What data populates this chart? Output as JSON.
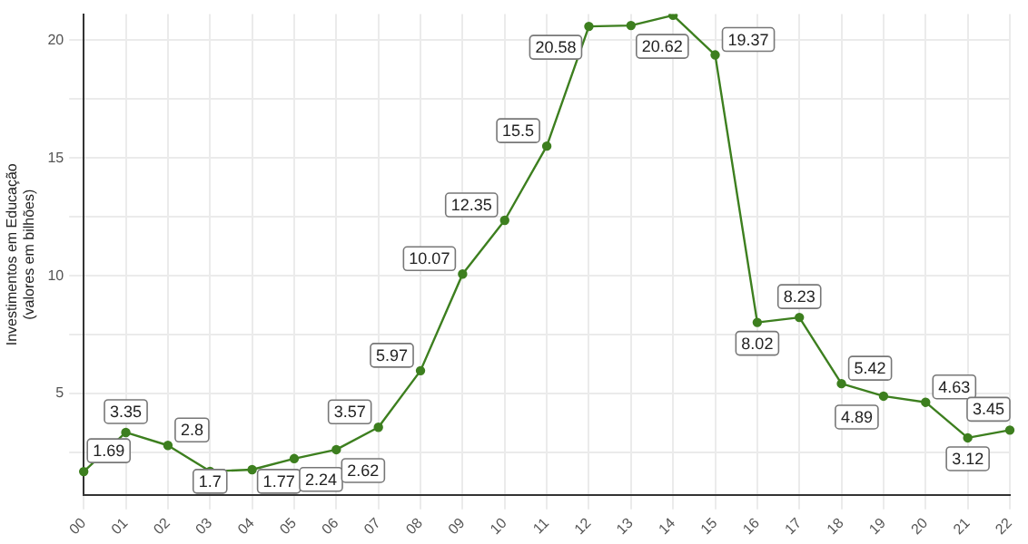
{
  "chart_data": {
    "type": "line",
    "ylabel": "Investimentos em Educação\n(valores em bilhões)",
    "categories": [
      "00",
      "01",
      "02",
      "03",
      "04",
      "05",
      "06",
      "07",
      "08",
      "09",
      "10",
      "11",
      "12",
      "13",
      "14",
      "15",
      "16",
      "17",
      "18",
      "19",
      "20",
      "21",
      "22"
    ],
    "series": [
      {
        "color": "#3d7f1f",
        "values": [
          1.69,
          3.35,
          2.8,
          1.7,
          1.77,
          2.24,
          2.62,
          3.57,
          5.97,
          10.07,
          12.35,
          15.5,
          20.58,
          20.62,
          21.05,
          19.37,
          8.02,
          8.23,
          5.42,
          4.89,
          4.63,
          3.12,
          3.45
        ],
        "value_labels": [
          "1.69",
          "3.35",
          "2.8",
          "1.7",
          "1.77",
          "2.24",
          "2.62",
          "3.57",
          "5.97",
          "10.07",
          "12.35",
          "15.5",
          "20.58",
          "20.62",
          null,
          "19.37",
          "8.02",
          "8.23",
          "5.42",
          "4.89",
          "4.63",
          "3.12",
          "3.45"
        ]
      }
    ],
    "ylim": [
      0.7,
      21.1
    ],
    "yticks": [
      {
        "value": 2.5,
        "label": null
      },
      5,
      {
        "value": 7.5,
        "label": null
      },
      10,
      {
        "value": 12.5,
        "label": null
      },
      15,
      {
        "value": 17.5,
        "label": null
      },
      20
    ],
    "grid": true,
    "marker": "circle",
    "line_style": "solid",
    "legend": false
  }
}
